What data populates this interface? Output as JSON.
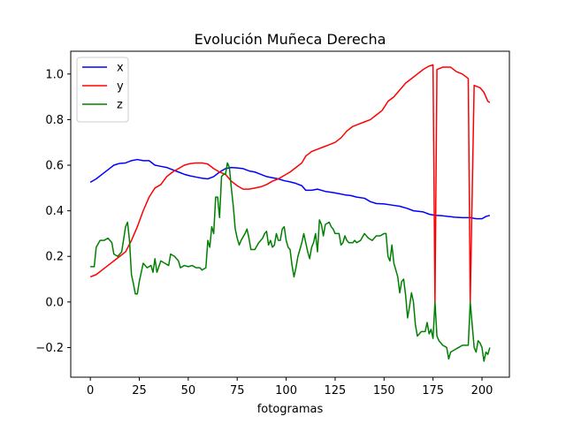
{
  "chart_data": {
    "type": "line",
    "title": "Evolución Muñeca Derecha",
    "xlabel": "fotogramas",
    "ylabel": "",
    "xlim": [
      -10,
      214
    ],
    "ylim": [
      -0.33,
      1.1
    ],
    "xticks": [
      0,
      25,
      50,
      75,
      100,
      125,
      150,
      175,
      200
    ],
    "yticks": [
      -0.2,
      0.0,
      0.2,
      0.4,
      0.6,
      0.8,
      1.0
    ],
    "ytick_labels": [
      "−0.2",
      "0.0",
      "0.2",
      "0.4",
      "0.6",
      "0.8",
      "1.0"
    ],
    "grid": false,
    "legend_position": "top-left",
    "series": [
      {
        "name": "x",
        "color": "#0000ff",
        "points": [
          [
            0,
            0.525
          ],
          [
            3,
            0.54
          ],
          [
            6,
            0.56
          ],
          [
            9,
            0.58
          ],
          [
            12,
            0.6
          ],
          [
            15,
            0.608
          ],
          [
            18,
            0.61
          ],
          [
            21,
            0.62
          ],
          [
            24,
            0.625
          ],
          [
            27,
            0.62
          ],
          [
            30,
            0.62
          ],
          [
            33,
            0.6
          ],
          [
            36,
            0.595
          ],
          [
            39,
            0.59
          ],
          [
            42,
            0.58
          ],
          [
            45,
            0.57
          ],
          [
            48,
            0.56
          ],
          [
            51,
            0.553
          ],
          [
            54,
            0.548
          ],
          [
            57,
            0.543
          ],
          [
            60,
            0.54
          ],
          [
            63,
            0.55
          ],
          [
            66,
            0.57
          ],
          [
            69,
            0.585
          ],
          [
            72,
            0.59
          ],
          [
            75,
            0.588
          ],
          [
            78,
            0.585
          ],
          [
            81,
            0.575
          ],
          [
            84,
            0.57
          ],
          [
            87,
            0.56
          ],
          [
            90,
            0.55
          ],
          [
            93,
            0.545
          ],
          [
            96,
            0.54
          ],
          [
            99,
            0.532
          ],
          [
            102,
            0.527
          ],
          [
            105,
            0.52
          ],
          [
            108,
            0.51
          ],
          [
            110,
            0.49
          ],
          [
            113,
            0.49
          ],
          [
            116,
            0.495
          ],
          [
            120,
            0.485
          ],
          [
            124,
            0.48
          ],
          [
            127,
            0.475
          ],
          [
            130,
            0.47
          ],
          [
            133,
            0.467
          ],
          [
            136,
            0.46
          ],
          [
            140,
            0.455
          ],
          [
            143,
            0.44
          ],
          [
            146,
            0.432
          ],
          [
            150,
            0.43
          ],
          [
            154,
            0.425
          ],
          [
            158,
            0.42
          ],
          [
            162,
            0.41
          ],
          [
            165,
            0.4
          ],
          [
            170,
            0.395
          ],
          [
            173,
            0.385
          ],
          [
            176,
            0.38
          ],
          [
            180,
            0.378
          ],
          [
            183,
            0.375
          ],
          [
            186,
            0.372
          ],
          [
            190,
            0.37
          ],
          [
            194,
            0.37
          ],
          [
            197,
            0.365
          ],
          [
            200,
            0.365
          ],
          [
            202,
            0.375
          ],
          [
            204,
            0.38
          ]
        ]
      },
      {
        "name": "y",
        "color": "#ff0000",
        "points": [
          [
            0,
            0.11
          ],
          [
            3,
            0.12
          ],
          [
            6,
            0.14
          ],
          [
            9,
            0.16
          ],
          [
            12,
            0.18
          ],
          [
            15,
            0.2
          ],
          [
            18,
            0.22
          ],
          [
            21,
            0.27
          ],
          [
            24,
            0.33
          ],
          [
            27,
            0.4
          ],
          [
            30,
            0.46
          ],
          [
            33,
            0.5
          ],
          [
            36,
            0.515
          ],
          [
            39,
            0.55
          ],
          [
            42,
            0.57
          ],
          [
            45,
            0.585
          ],
          [
            48,
            0.6
          ],
          [
            51,
            0.607
          ],
          [
            54,
            0.61
          ],
          [
            57,
            0.61
          ],
          [
            60,
            0.605
          ],
          [
            63,
            0.585
          ],
          [
            66,
            0.57
          ],
          [
            69,
            0.56
          ],
          [
            72,
            0.53
          ],
          [
            75,
            0.51
          ],
          [
            78,
            0.495
          ],
          [
            81,
            0.495
          ],
          [
            84,
            0.5
          ],
          [
            87,
            0.505
          ],
          [
            90,
            0.515
          ],
          [
            93,
            0.53
          ],
          [
            96,
            0.54
          ],
          [
            99,
            0.555
          ],
          [
            102,
            0.57
          ],
          [
            105,
            0.59
          ],
          [
            108,
            0.61
          ],
          [
            110,
            0.64
          ],
          [
            113,
            0.66
          ],
          [
            116,
            0.67
          ],
          [
            119,
            0.68
          ],
          [
            122,
            0.69
          ],
          [
            125,
            0.7
          ],
          [
            128,
            0.72
          ],
          [
            131,
            0.75
          ],
          [
            134,
            0.77
          ],
          [
            137,
            0.78
          ],
          [
            140,
            0.79
          ],
          [
            143,
            0.8
          ],
          [
            146,
            0.82
          ],
          [
            149,
            0.84
          ],
          [
            152,
            0.88
          ],
          [
            155,
            0.9
          ],
          [
            158,
            0.93
          ],
          [
            161,
            0.96
          ],
          [
            164,
            0.98
          ],
          [
            167,
            1.0
          ],
          [
            170,
            1.02
          ],
          [
            173,
            1.035
          ],
          [
            175,
            1.04
          ],
          [
            176,
            0.0
          ],
          [
            177,
            1.02
          ],
          [
            180,
            1.03
          ],
          [
            184,
            1.03
          ],
          [
            187,
            1.01
          ],
          [
            190,
            1.0
          ],
          [
            193,
            0.98
          ],
          [
            194,
            0.0
          ],
          [
            196,
            0.95
          ],
          [
            199,
            0.94
          ],
          [
            201,
            0.92
          ],
          [
            203,
            0.88
          ],
          [
            204,
            0.875
          ]
        ]
      },
      {
        "name": "z",
        "color": "#008000",
        "points": [
          [
            0,
            0.155
          ],
          [
            1,
            0.155
          ],
          [
            2,
            0.155
          ],
          [
            3,
            0.24
          ],
          [
            5,
            0.27
          ],
          [
            7,
            0.27
          ],
          [
            9,
            0.28
          ],
          [
            11,
            0.26
          ],
          [
            12,
            0.21
          ],
          [
            14,
            0.2
          ],
          [
            16,
            0.22
          ],
          [
            18,
            0.33
          ],
          [
            19,
            0.35
          ],
          [
            20,
            0.27
          ],
          [
            21,
            0.12
          ],
          [
            22,
            0.08
          ],
          [
            23,
            0.035
          ],
          [
            24,
            0.035
          ],
          [
            25,
            0.09
          ],
          [
            27,
            0.17
          ],
          [
            29,
            0.15
          ],
          [
            31,
            0.16
          ],
          [
            32,
            0.13
          ],
          [
            33,
            0.19
          ],
          [
            34,
            0.13
          ],
          [
            36,
            0.18
          ],
          [
            38,
            0.17
          ],
          [
            40,
            0.16
          ],
          [
            41,
            0.21
          ],
          [
            43,
            0.2
          ],
          [
            45,
            0.18
          ],
          [
            46,
            0.15
          ],
          [
            48,
            0.16
          ],
          [
            50,
            0.155
          ],
          [
            52,
            0.16
          ],
          [
            54,
            0.15
          ],
          [
            56,
            0.15
          ],
          [
            57,
            0.14
          ],
          [
            59,
            0.15
          ],
          [
            60,
            0.27
          ],
          [
            61,
            0.24
          ],
          [
            62,
            0.33
          ],
          [
            63,
            0.3
          ],
          [
            64,
            0.46
          ],
          [
            65,
            0.46
          ],
          [
            66,
            0.37
          ],
          [
            67,
            0.55
          ],
          [
            68,
            0.56
          ],
          [
            69,
            0.56
          ],
          [
            70,
            0.61
          ],
          [
            71,
            0.59
          ],
          [
            72,
            0.5
          ],
          [
            73,
            0.42
          ],
          [
            74,
            0.32
          ],
          [
            75,
            0.28
          ],
          [
            76,
            0.25
          ],
          [
            77,
            0.27
          ],
          [
            79,
            0.3
          ],
          [
            80,
            0.32
          ],
          [
            81,
            0.28
          ],
          [
            82,
            0.23
          ],
          [
            84,
            0.23
          ],
          [
            86,
            0.26
          ],
          [
            88,
            0.28
          ],
          [
            89,
            0.3
          ],
          [
            90,
            0.31
          ],
          [
            91,
            0.25
          ],
          [
            92,
            0.27
          ],
          [
            93,
            0.24
          ],
          [
            94,
            0.25
          ],
          [
            95,
            0.3
          ],
          [
            96,
            0.27
          ],
          [
            97,
            0.27
          ],
          [
            98,
            0.32
          ],
          [
            99,
            0.33
          ],
          [
            100,
            0.27
          ],
          [
            101,
            0.24
          ],
          [
            102,
            0.23
          ],
          [
            103,
            0.16
          ],
          [
            104,
            0.11
          ],
          [
            105,
            0.15
          ],
          [
            106,
            0.2
          ],
          [
            108,
            0.26
          ],
          [
            109,
            0.3
          ],
          [
            110,
            0.26
          ],
          [
            111,
            0.22
          ],
          [
            112,
            0.19
          ],
          [
            113,
            0.24
          ],
          [
            114,
            0.26
          ],
          [
            115,
            0.3
          ],
          [
            116,
            0.22
          ],
          [
            117,
            0.36
          ],
          [
            118,
            0.34
          ],
          [
            119,
            0.29
          ],
          [
            120,
            0.34
          ],
          [
            122,
            0.35
          ],
          [
            123,
            0.33
          ],
          [
            124,
            0.32
          ],
          [
            125,
            0.3
          ],
          [
            126,
            0.3
          ],
          [
            127,
            0.3
          ],
          [
            128,
            0.25
          ],
          [
            129,
            0.26
          ],
          [
            130,
            0.29
          ],
          [
            131,
            0.27
          ],
          [
            132,
            0.26
          ],
          [
            133,
            0.26
          ],
          [
            134,
            0.26
          ],
          [
            135,
            0.27
          ],
          [
            136,
            0.26
          ],
          [
            138,
            0.27
          ],
          [
            140,
            0.3
          ],
          [
            142,
            0.28
          ],
          [
            144,
            0.27
          ],
          [
            146,
            0.29
          ],
          [
            148,
            0.29
          ],
          [
            150,
            0.3
          ],
          [
            151,
            0.3
          ],
          [
            152,
            0.2
          ],
          [
            153,
            0.18
          ],
          [
            154,
            0.25
          ],
          [
            155,
            0.17
          ],
          [
            156,
            0.14
          ],
          [
            157,
            0.11
          ],
          [
            158,
            0.04
          ],
          [
            159,
            0.09
          ],
          [
            160,
            0.1
          ],
          [
            161,
            0.03
          ],
          [
            162,
            -0.07
          ],
          [
            163,
            -0.02
          ],
          [
            164,
            0.04
          ],
          [
            165,
            0.0
          ],
          [
            166,
            -0.1
          ],
          [
            167,
            -0.15
          ],
          [
            169,
            -0.13
          ],
          [
            171,
            -0.13
          ],
          [
            172,
            -0.09
          ],
          [
            173,
            -0.14
          ],
          [
            174,
            -0.12
          ],
          [
            175,
            -0.16
          ],
          [
            176,
            0.0
          ],
          [
            177,
            -0.15
          ],
          [
            178,
            -0.17
          ],
          [
            180,
            -0.19
          ],
          [
            182,
            -0.2
          ],
          [
            183,
            -0.25
          ],
          [
            184,
            -0.22
          ],
          [
            186,
            -0.21
          ],
          [
            188,
            -0.2
          ],
          [
            190,
            -0.19
          ],
          [
            193,
            -0.19
          ],
          [
            194,
            0.0
          ],
          [
            196,
            -0.2
          ],
          [
            197,
            -0.22
          ],
          [
            198,
            -0.17
          ],
          [
            199,
            -0.18
          ],
          [
            200,
            -0.2
          ],
          [
            201,
            -0.26
          ],
          [
            202,
            -0.22
          ],
          [
            203,
            -0.23
          ],
          [
            204,
            -0.2
          ]
        ]
      }
    ]
  }
}
